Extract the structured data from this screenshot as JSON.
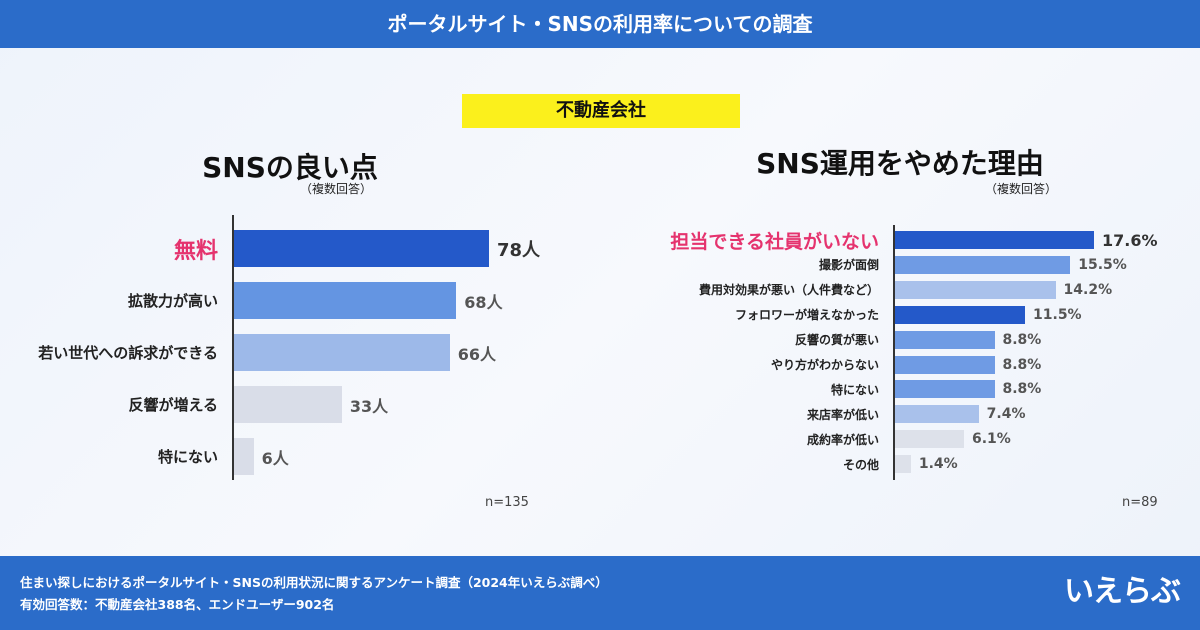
{
  "header": {
    "title": "ポータルサイト・SNSの利用率についての調査"
  },
  "badge": "不動産会社",
  "chart_data": [
    {
      "type": "bar",
      "title": "SNSの良い点",
      "subtitle": "（複数回答）",
      "categories": [
        "無料",
        "拡散力が高い",
        "若い世代への訴求ができる",
        "反響が増える",
        "特にない"
      ],
      "values": [
        78,
        68,
        66,
        33,
        6
      ],
      "value_labels": [
        "78人",
        "68人",
        "66人",
        "33人",
        "6人"
      ],
      "colors": [
        "#2459c9",
        "#6495e2",
        "#9db9e9",
        "#d9dde8",
        "#d9dde8"
      ],
      "highlight_color": "#e5336e",
      "note": "n=135"
    },
    {
      "type": "bar",
      "title": "SNS運用をやめた理由",
      "subtitle": "（複数回答）",
      "categories": [
        "担当できる社員がいない",
        "撮影が面倒",
        "費用対効果が悪い（人件費など）",
        "フォロワーが増えなかった",
        "反響の質が悪い",
        "やり方がわからない",
        "特にない",
        "来店率が低い",
        "成約率が低い",
        "その他"
      ],
      "values": [
        17.6,
        15.5,
        14.2,
        11.5,
        8.8,
        8.8,
        8.8,
        7.4,
        6.1,
        1.4
      ],
      "value_labels": [
        "17.6%",
        "15.5%",
        "14.2%",
        "11.5%",
        "8.8%",
        "8.8%",
        "8.8%",
        "7.4%",
        "6.1%",
        "1.4%"
      ],
      "colors": [
        "#2459c9",
        "#6f9be4",
        "#a9c1eb",
        "#2459c9",
        "#6f9be4",
        "#6f9be4",
        "#6f9be4",
        "#a9c1eb",
        "#dde1ea",
        "#dde1ea"
      ],
      "highlight_color": "#e5336e",
      "note": "n=89"
    }
  ],
  "footer": {
    "lines": [
      "住まい探しにおけるポータルサイト・SNSの利用状況に関するアンケート調査（2024年いえらぶ調べ）",
      "有効回答数：不動産会社388名、エンドユーザー902名"
    ],
    "logo": "いえらぶ"
  }
}
